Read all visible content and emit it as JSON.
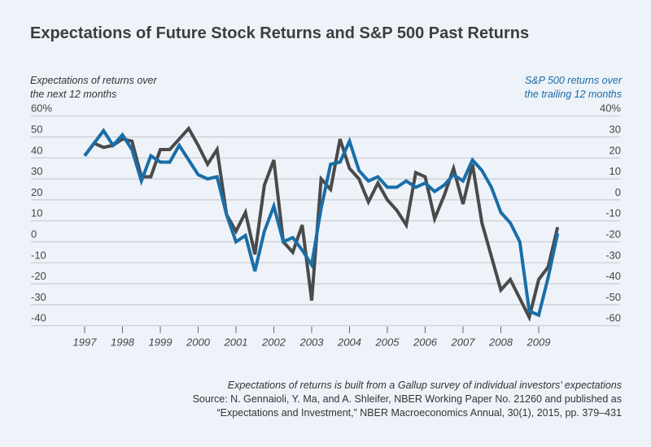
{
  "chart_data": {
    "type": "line",
    "title": "Expectations of Future Stock Returns and S&P 500 Past Returns",
    "ylabel_left": [
      "Expectations of returns over",
      "the next 12 months"
    ],
    "ylabel_right": [
      "S&P 500 returns over",
      "the trailing 12 months"
    ],
    "left_ticks": [
      "60%",
      "50",
      "40",
      "30",
      "20",
      "10",
      "0",
      "-10",
      "-20",
      "-30",
      "-40"
    ],
    "right_ticks": [
      "40%",
      "30",
      "20",
      "10",
      "0",
      "-10",
      "-20",
      "-30",
      "-40",
      "-50",
      "-60"
    ],
    "ylim_left": [
      -40,
      60
    ],
    "ylim_right": [
      -60,
      40
    ],
    "x_ticks": [
      "1997",
      "1998",
      "1999",
      "2000",
      "2001",
      "2002",
      "2003",
      "2004",
      "2005",
      "2006",
      "2007",
      "2008",
      "2009"
    ],
    "x_start": 1997.0,
    "x_step": 0.25,
    "grid": true,
    "series": [
      {
        "name": "Expectations of returns over the next 12 months",
        "axis": "left",
        "color": "#4a4a4a",
        "values": [
          41,
          47,
          45,
          46,
          49,
          48,
          31,
          31,
          44,
          44,
          49,
          54,
          46,
          37,
          44,
          13,
          5,
          14,
          -6,
          27,
          39,
          0,
          -5,
          8,
          -28,
          30,
          25,
          49,
          35,
          30,
          19,
          28,
          20,
          15,
          8,
          33,
          31,
          11,
          22,
          35,
          18,
          37,
          9,
          -7,
          -23,
          -18,
          -27,
          -36,
          -18,
          -12,
          7
        ]
      },
      {
        "name": "S&P 500 returns over the trailing 12 months",
        "axis": "right",
        "color": "#1a6ea8",
        "values": [
          21,
          27,
          33,
          26,
          31,
          24,
          9,
          21,
          18,
          18,
          26,
          19,
          12,
          10,
          11,
          -7,
          -20,
          -17,
          -34,
          -15,
          -3,
          -20,
          -18,
          -24,
          -31,
          -4,
          17,
          18,
          28,
          14,
          9,
          11,
          6,
          6,
          9,
          6,
          8,
          4,
          7,
          12,
          9,
          19,
          14,
          6,
          -6,
          -11,
          -20,
          -53,
          -55,
          -37,
          -16
        ]
      }
    ],
    "notes": {
      "line1": "Expectations of returns is built from a Gallup survey of individual investors’ expectations",
      "line2": "Source: N. Gennaioli, Y. Ma, and A. Shleifer, NBER Working Paper No. 21260 and published as",
      "line3": "“Expectations and Investment,” NBER Macroeconomics Annual, 30(1), 2015, pp. 379–431"
    }
  }
}
